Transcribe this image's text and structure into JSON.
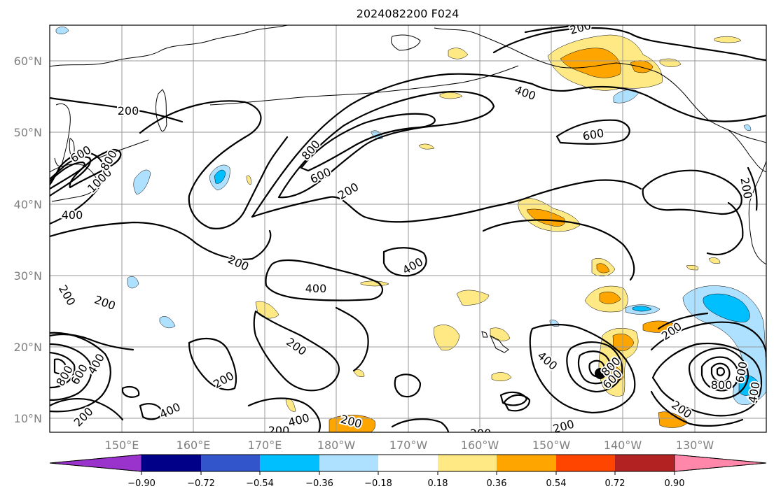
{
  "title": "2024082200 F024",
  "axes": {
    "lat_labels": [
      "60°N",
      "50°N",
      "40°N",
      "30°N",
      "20°N",
      "10°N"
    ],
    "lon_labels": [
      "150°E",
      "160°E",
      "170°E",
      "180°W",
      "170°W",
      "160°W",
      "150°W",
      "140°W",
      "130°W"
    ]
  },
  "contour_labels": [
    {
      "text": "200",
      "name": "contour-label-200-north-alaska"
    },
    {
      "text": "200",
      "name": "contour-label-200-kamchatka"
    },
    {
      "text": "600",
      "name": "contour-label-600-kuril"
    },
    {
      "text": "1000",
      "name": "contour-label-1000-japan"
    },
    {
      "text": "800",
      "name": "contour-label-800-japan"
    },
    {
      "text": "400",
      "name": "contour-label-400-japan"
    },
    {
      "text": "800",
      "name": "contour-label-800-jet"
    },
    {
      "text": "600",
      "name": "contour-label-600-jet"
    },
    {
      "text": "200",
      "name": "contour-label-200-jet"
    },
    {
      "text": "400",
      "name": "contour-label-400-gulf-alaska"
    },
    {
      "text": "600",
      "name": "contour-label-600-gulf-alaska"
    },
    {
      "text": "200",
      "name": "contour-label-200-west-coast"
    },
    {
      "text": "200",
      "name": "contour-label-200-central"
    },
    {
      "text": "400",
      "name": "contour-label-400-central"
    },
    {
      "text": "400",
      "name": "contour-label-400-hawaii-north"
    },
    {
      "text": "200",
      "name": "contour-label-200-west-pacific"
    },
    {
      "text": "200",
      "name": "contour-label-200-west-edge"
    },
    {
      "text": "200",
      "name": "contour-label-200-dateline"
    },
    {
      "text": "200",
      "name": "contour-label-200-south-central"
    },
    {
      "text": "400",
      "name": "contour-label-400-west-south"
    },
    {
      "text": "400",
      "name": "contour-label-400-typhoon-west"
    },
    {
      "text": "800",
      "name": "contour-label-800-typhoon-west"
    },
    {
      "text": "600",
      "name": "contour-label-600-typhoon-west"
    },
    {
      "text": "200",
      "name": "contour-label-200-southwest"
    },
    {
      "text": "400",
      "name": "contour-label-400-south-dateline"
    },
    {
      "text": "200",
      "name": "contour-label-200-bottom-1"
    },
    {
      "text": "200",
      "name": "contour-label-200-bottom-2"
    },
    {
      "text": "200",
      "name": "contour-label-200-bottom-3"
    },
    {
      "text": "200",
      "name": "contour-label-200-bottom-4"
    },
    {
      "text": "400",
      "name": "contour-label-400-hurricane-a"
    },
    {
      "text": "600",
      "name": "contour-label-600-hurricane-a"
    },
    {
      "text": "800",
      "name": "contour-label-800-hurricane-a"
    },
    {
      "text": "200",
      "name": "contour-label-200-hurricane-b-north"
    },
    {
      "text": "200",
      "name": "contour-label-200-hurricane-b-south"
    },
    {
      "text": "800",
      "name": "contour-label-800-hurricane-b"
    },
    {
      "text": "600",
      "name": "contour-label-600-hurricane-b"
    },
    {
      "text": "400",
      "name": "contour-label-400-hurricane-b"
    }
  ],
  "colorbar": {
    "colors": [
      "#9933cc",
      "#000088",
      "#3355cc",
      "#00bfff",
      "#aee0ff",
      "#ffffff",
      "#ffe985",
      "#ffa500",
      "#ff4500",
      "#b22222",
      "#ff88aa"
    ],
    "tick_labels": [
      "−0.90",
      "−0.72",
      "−0.54",
      "−0.36",
      "−0.18",
      "0.18",
      "0.36",
      "0.54",
      "0.72",
      "0.90"
    ]
  }
}
